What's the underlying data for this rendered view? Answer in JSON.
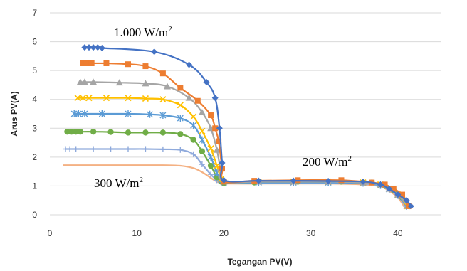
{
  "chart_data": {
    "type": "line",
    "xlabel": "Tegangan PV(V)",
    "ylabel": "Arus PV(A)",
    "xlim": [
      0,
      45
    ],
    "ylim": [
      0,
      7
    ],
    "xticks": [
      "0",
      "10",
      "20",
      "30",
      "40"
    ],
    "yticks": [
      "0",
      "1",
      "2",
      "3",
      "4",
      "5",
      "6",
      "7"
    ],
    "grid": "horizontal",
    "annotations": [
      {
        "text": "1.000 W/m",
        "sup": "2"
      },
      {
        "text": "200 W/m",
        "sup": "2"
      },
      {
        "text": "300 W/m",
        "sup": "2"
      }
    ],
    "series": [
      {
        "color": "#4472C4",
        "marker": "diamond",
        "x": [
          4.0,
          4.5,
          5.0,
          5.5,
          6.0,
          12.0,
          16.0,
          18.0,
          19.0,
          19.5,
          19.8,
          20.0,
          24,
          28,
          32,
          36,
          38,
          39,
          40,
          41,
          41.5
        ],
        "y": [
          5.8,
          5.8,
          5.8,
          5.8,
          5.78,
          5.65,
          5.2,
          4.6,
          4.05,
          3.0,
          1.8,
          1.2,
          1.18,
          1.18,
          1.17,
          1.15,
          1.05,
          0.9,
          0.7,
          0.5,
          0.3
        ]
      },
      {
        "color": "#ED7D31",
        "marker": "square",
        "x": [
          3.8,
          4.2,
          4.8,
          6.5,
          9.0,
          11.0,
          13.0,
          15.0,
          17.0,
          18.5,
          19.0,
          19.4,
          19.8,
          20.0,
          23.5,
          28.5,
          33.5,
          37.0,
          38.5,
          39.5,
          40.5,
          41.3
        ],
        "y": [
          5.25,
          5.25,
          5.25,
          5.25,
          5.22,
          5.15,
          4.9,
          4.4,
          3.95,
          3.45,
          3.0,
          2.55,
          1.6,
          1.15,
          1.18,
          1.2,
          1.2,
          1.12,
          1.05,
          0.9,
          0.7,
          0.3
        ]
      },
      {
        "color": "#A5A5A5",
        "marker": "triangle",
        "x": [
          3.5,
          4.0,
          5.0,
          8.0,
          11.0,
          13.5,
          16.0,
          17.5,
          18.5,
          19.2,
          19.6,
          20.0,
          24,
          28,
          32,
          36,
          38,
          39,
          40,
          41.2
        ],
        "y": [
          4.6,
          4.6,
          4.6,
          4.58,
          4.55,
          4.45,
          4.05,
          3.55,
          3.0,
          2.25,
          1.6,
          1.15,
          1.15,
          1.15,
          1.15,
          1.12,
          1.05,
          0.9,
          0.7,
          0.3
        ]
      },
      {
        "color": "#FFC000",
        "marker": "x",
        "x": [
          3.2,
          3.8,
          4.5,
          6.5,
          9.0,
          11.0,
          13.0,
          15.0,
          16.5,
          17.5,
          18.5,
          19.2,
          19.7,
          20.0,
          24,
          28,
          32,
          36,
          38,
          39,
          40,
          41.1
        ],
        "y": [
          4.05,
          4.05,
          4.05,
          4.05,
          4.05,
          4.03,
          4.0,
          3.8,
          3.4,
          2.9,
          2.3,
          1.7,
          1.25,
          1.15,
          1.15,
          1.15,
          1.15,
          1.12,
          1.05,
          0.9,
          0.7,
          0.3
        ]
      },
      {
        "color": "#5B9BD5",
        "marker": "star",
        "x": [
          2.8,
          3.3,
          4.0,
          6.0,
          9.0,
          11.5,
          13.0,
          15.0,
          16.5,
          17.5,
          18.5,
          19.2,
          19.7,
          20.0,
          24,
          28,
          32,
          36,
          38,
          39,
          40,
          41.0
        ],
        "y": [
          3.5,
          3.5,
          3.5,
          3.5,
          3.5,
          3.48,
          3.45,
          3.35,
          3.1,
          2.6,
          2.0,
          1.45,
          1.2,
          1.12,
          1.12,
          1.12,
          1.12,
          1.1,
          1.02,
          0.88,
          0.68,
          0.3
        ]
      },
      {
        "color": "#70AD47",
        "marker": "circle",
        "x": [
          2.0,
          2.5,
          3.0,
          3.5,
          5.0,
          7.0,
          9.0,
          11.0,
          13.0,
          15.0,
          16.5,
          17.5,
          18.5,
          19.2,
          19.7,
          20.0,
          23.5,
          28.5,
          33.5,
          37.0,
          38.5,
          39.5,
          40.5,
          41.3
        ],
        "y": [
          2.88,
          2.88,
          2.88,
          2.88,
          2.88,
          2.87,
          2.85,
          2.85,
          2.85,
          2.8,
          2.6,
          2.2,
          1.7,
          1.3,
          1.15,
          1.1,
          1.12,
          1.15,
          1.15,
          1.12,
          1.0,
          0.85,
          0.6,
          0.3
        ]
      },
      {
        "color": "#8FAADC",
        "marker": "plus",
        "x": [
          1.8,
          2.3,
          3.0,
          5.0,
          7.0,
          9.0,
          11.0,
          13.0,
          15.0,
          16.5,
          17.5,
          18.5,
          19.2,
          19.7,
          20.0,
          24,
          28,
          32,
          36,
          38,
          39,
          40,
          40.9
        ],
        "y": [
          2.28,
          2.28,
          2.28,
          2.28,
          2.28,
          2.28,
          2.28,
          2.27,
          2.25,
          2.1,
          1.75,
          1.4,
          1.2,
          1.12,
          1.1,
          1.1,
          1.1,
          1.1,
          1.08,
          1.0,
          0.85,
          0.65,
          0.3
        ]
      },
      {
        "color": "#F4B183",
        "marker": "none",
        "x": [
          1.5,
          3.0,
          6.0,
          10.0,
          13.0,
          15.0,
          16.5,
          17.5,
          18.3,
          19.0,
          19.6,
          20.0,
          24,
          28,
          32,
          36,
          38,
          39,
          40,
          40.8
        ],
        "y": [
          1.72,
          1.72,
          1.72,
          1.72,
          1.72,
          1.7,
          1.62,
          1.48,
          1.32,
          1.18,
          1.1,
          1.08,
          1.08,
          1.08,
          1.08,
          1.05,
          0.98,
          0.82,
          0.6,
          0.25
        ]
      }
    ]
  }
}
